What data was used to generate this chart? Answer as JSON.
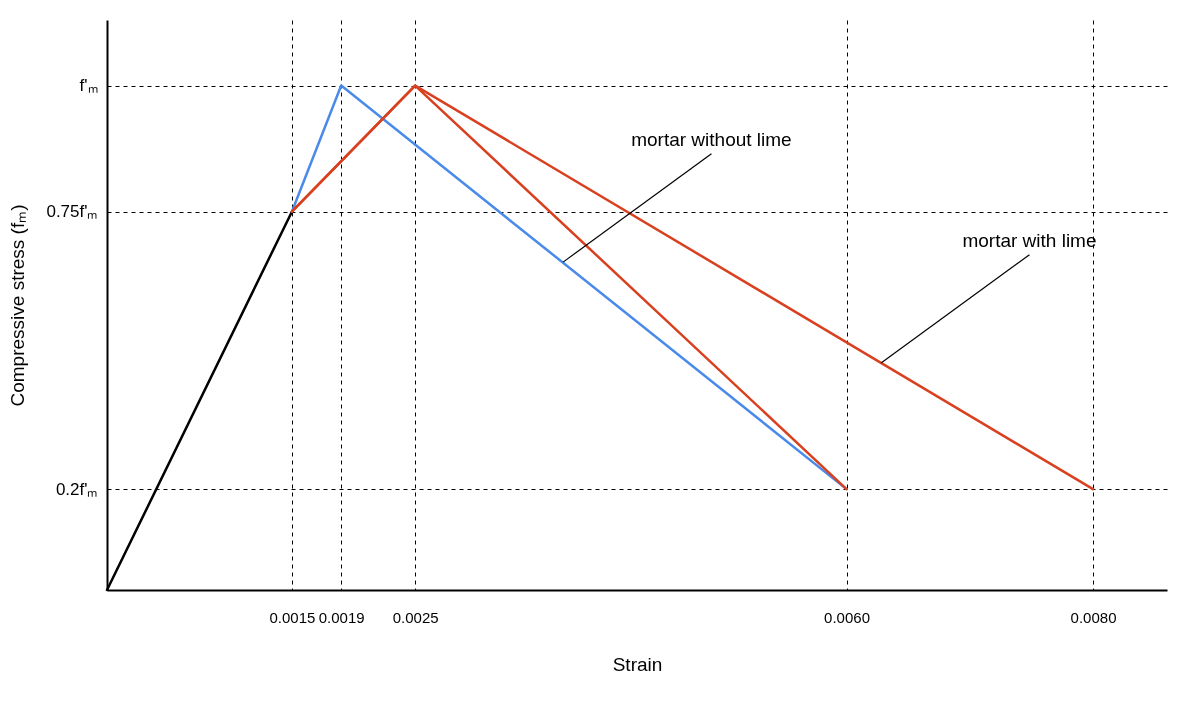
{
  "chart_data": {
    "type": "line",
    "xlabel": "Strain",
    "ylabel": "Compressive stress (fₘ)",
    "grid": true,
    "xlim": [
      0,
      0.0086
    ],
    "ylim": [
      0,
      1.13
    ],
    "xticks": [
      0.0015,
      0.0019,
      0.0025,
      {
        "value": 0.006,
        "label": "0.0060"
      },
      {
        "value": 0.008,
        "label": "0.0080"
      }
    ],
    "yticks": [
      {
        "value": 0.2,
        "label": "0.2f'ₘ"
      },
      {
        "value": 0.75,
        "label": "0.75f'ₘ"
      },
      {
        "value": 1,
        "label": "f'ₘ"
      }
    ],
    "series": [
      {
        "color": "#000000",
        "x": [
          0,
          0.0015
        ],
        "values": [
          0,
          0.75
        ]
      },
      {
        "color": "#4a8ae8",
        "x": [
          0.0015,
          0.0019,
          0.006
        ],
        "values": [
          0.75,
          1,
          0.2
        ]
      },
      {
        "color": "#d9401f",
        "x": [
          0.0015,
          0.0025,
          0.006
        ],
        "values": [
          0.75,
          1,
          0.2
        ]
      },
      {
        "color": "#d9401f",
        "x": [
          0.0015,
          0.0025,
          0.008
        ],
        "values": [
          0.75,
          1,
          0.2
        ]
      }
    ],
    "annotations": [
      {
        "text": "mortar without lime",
        "x": 0.0037,
        "y": 0.65
      },
      {
        "text": "mortar with lime",
        "x": 0.00628,
        "y": 0.45
      }
    ]
  }
}
